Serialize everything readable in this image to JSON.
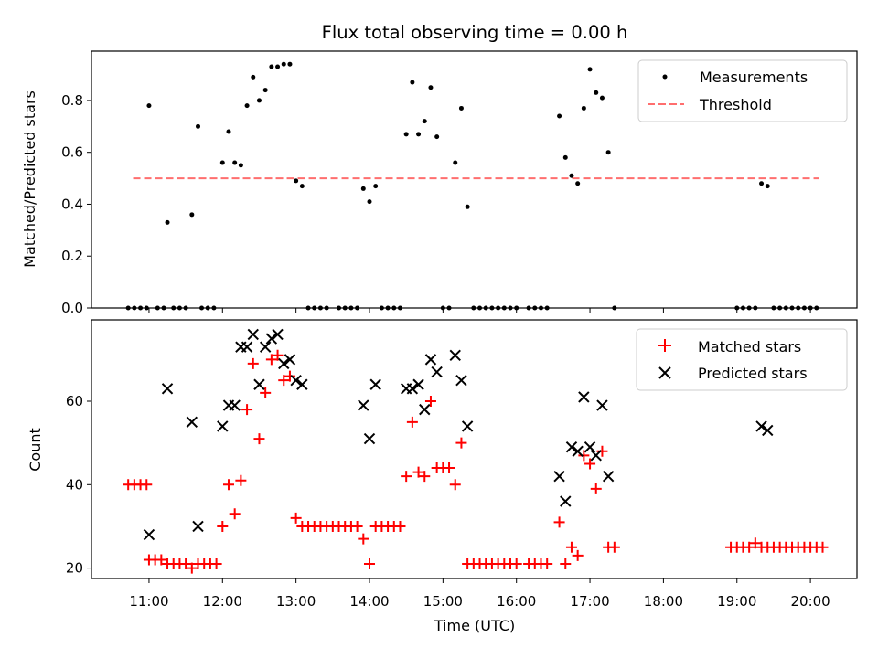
{
  "chart_data": [
    {
      "type": "scatter",
      "title": "Flux total observing time = 0.00 h",
      "ylabel": "Matched/Predicted stars",
      "ylim": [
        0,
        0.99
      ],
      "yticks": [
        0.0,
        0.2,
        0.4,
        0.6,
        0.8
      ],
      "ytick_labels": [
        "0.0",
        "0.2",
        "0.4",
        "0.6",
        "0.8"
      ],
      "legend": {
        "placement": "upper-right",
        "entries": [
          "Measurements",
          "Threshold"
        ]
      },
      "threshold": {
        "name": "Threshold",
        "y": 0.5,
        "x_start": "10:47",
        "x_end": "20:07",
        "color": "#ff6e6e"
      },
      "series": [
        {
          "name": "Measurements",
          "color": "#000000",
          "points": [
            [
              "10:43",
              0
            ],
            [
              "10:48",
              0
            ],
            [
              "10:53",
              0
            ],
            [
              "10:58",
              0
            ],
            [
              "11:00",
              0.78
            ],
            [
              "11:07",
              0
            ],
            [
              "11:12",
              0
            ],
            [
              "11:15",
              0.33
            ],
            [
              "11:20",
              0
            ],
            [
              "11:25",
              0
            ],
            [
              "11:30",
              0
            ],
            [
              "11:35",
              0.36
            ],
            [
              "11:40",
              0.7
            ],
            [
              "11:43",
              0
            ],
            [
              "11:48",
              0
            ],
            [
              "11:53",
              0
            ],
            [
              "12:00",
              0.56
            ],
            [
              "12:05",
              0.68
            ],
            [
              "12:10",
              0.56
            ],
            [
              "12:15",
              0.55
            ],
            [
              "12:20",
              0.78
            ],
            [
              "12:25",
              0.89
            ],
            [
              "12:30",
              0.8
            ],
            [
              "12:35",
              0.84
            ],
            [
              "12:40",
              0.93
            ],
            [
              "12:45",
              0.93
            ],
            [
              "12:50",
              0.94
            ],
            [
              "12:55",
              0.94
            ],
            [
              "13:00",
              0.49
            ],
            [
              "13:05",
              0.47
            ],
            [
              "13:10",
              0
            ],
            [
              "13:15",
              0
            ],
            [
              "13:20",
              0
            ],
            [
              "13:25",
              0
            ],
            [
              "13:35",
              0
            ],
            [
              "13:40",
              0
            ],
            [
              "13:45",
              0
            ],
            [
              "13:50",
              0
            ],
            [
              "13:55",
              0.46
            ],
            [
              "14:00",
              0.41
            ],
            [
              "14:05",
              0.47
            ],
            [
              "14:10",
              0
            ],
            [
              "14:15",
              0
            ],
            [
              "14:20",
              0
            ],
            [
              "14:25",
              0
            ],
            [
              "14:30",
              0.67
            ],
            [
              "14:35",
              0.87
            ],
            [
              "14:40",
              0.67
            ],
            [
              "14:45",
              0.72
            ],
            [
              "14:50",
              0.85
            ],
            [
              "14:55",
              0.66
            ],
            [
              "15:00",
              0
            ],
            [
              "15:05",
              0
            ],
            [
              "15:10",
              0.56
            ],
            [
              "15:15",
              0.77
            ],
            [
              "15:20",
              0.39
            ],
            [
              "15:25",
              0
            ],
            [
              "15:30",
              0
            ],
            [
              "15:35",
              0
            ],
            [
              "15:40",
              0
            ],
            [
              "15:45",
              0
            ],
            [
              "15:50",
              0
            ],
            [
              "15:55",
              0
            ],
            [
              "16:00",
              0
            ],
            [
              "16:10",
              0
            ],
            [
              "16:15",
              0
            ],
            [
              "16:20",
              0
            ],
            [
              "16:25",
              0
            ],
            [
              "16:35",
              0.74
            ],
            [
              "16:40",
              0.58
            ],
            [
              "16:45",
              0.51
            ],
            [
              "16:50",
              0.48
            ],
            [
              "16:55",
              0.77
            ],
            [
              "17:00",
              0.92
            ],
            [
              "17:05",
              0.83
            ],
            [
              "17:10",
              0.81
            ],
            [
              "17:15",
              0.6
            ],
            [
              "17:20",
              0
            ],
            [
              "19:00",
              0
            ],
            [
              "19:05",
              0
            ],
            [
              "19:10",
              0
            ],
            [
              "19:15",
              0
            ],
            [
              "19:20",
              0.48
            ],
            [
              "19:25",
              0.47
            ],
            [
              "19:30",
              0
            ],
            [
              "19:35",
              0
            ],
            [
              "19:40",
              0
            ],
            [
              "19:45",
              0
            ],
            [
              "19:50",
              0
            ],
            [
              "19:55",
              0
            ],
            [
              "20:00",
              0
            ],
            [
              "20:05",
              0
            ]
          ]
        }
      ]
    },
    {
      "type": "scatter",
      "xlabel": "Time (UTC)",
      "ylabel": "Count",
      "ylim": [
        17.5,
        79.5
      ],
      "yticks": [
        20,
        40,
        60
      ],
      "ytick_labels": [
        "20",
        "40",
        "60"
      ],
      "xlim": [
        "10:13",
        "20:38"
      ],
      "xticks": [
        "11:00",
        "12:00",
        "13:00",
        "14:00",
        "15:00",
        "16:00",
        "17:00",
        "18:00",
        "19:00",
        "20:00"
      ],
      "xtick_labels": [
        "11:00",
        "12:00",
        "13:00",
        "14:00",
        "15:00",
        "16:00",
        "17:00",
        "18:00",
        "19:00",
        "20:00"
      ],
      "legend": {
        "placement": "upper-right",
        "entries": [
          "Matched stars",
          "Predicted stars"
        ]
      },
      "series": [
        {
          "name": "Matched stars",
          "marker": "plus",
          "color": "#ff0000",
          "points": [
            [
              "10:43",
              40
            ],
            [
              "10:48",
              40
            ],
            [
              "10:53",
              40
            ],
            [
              "10:58",
              40
            ],
            [
              "11:00",
              22
            ],
            [
              "11:05",
              22
            ],
            [
              "11:10",
              22
            ],
            [
              "11:15",
              21
            ],
            [
              "11:20",
              21
            ],
            [
              "11:25",
              21
            ],
            [
              "11:30",
              21
            ],
            [
              "11:35",
              20
            ],
            [
              "11:40",
              21
            ],
            [
              "11:45",
              21
            ],
            [
              "11:50",
              21
            ],
            [
              "11:55",
              21
            ],
            [
              "12:00",
              30
            ],
            [
              "12:05",
              40
            ],
            [
              "12:10",
              33
            ],
            [
              "12:15",
              41
            ],
            [
              "12:20",
              58
            ],
            [
              "12:25",
              69
            ],
            [
              "12:30",
              51
            ],
            [
              "12:35",
              62
            ],
            [
              "12:40",
              70
            ],
            [
              "12:45",
              71
            ],
            [
              "12:50",
              65
            ],
            [
              "12:55",
              66
            ],
            [
              "13:00",
              32
            ],
            [
              "13:05",
              30
            ],
            [
              "13:10",
              30
            ],
            [
              "13:15",
              30
            ],
            [
              "13:20",
              30
            ],
            [
              "13:25",
              30
            ],
            [
              "13:30",
              30
            ],
            [
              "13:35",
              30
            ],
            [
              "13:40",
              30
            ],
            [
              "13:45",
              30
            ],
            [
              "13:50",
              30
            ],
            [
              "13:55",
              27
            ],
            [
              "14:00",
              21
            ],
            [
              "14:05",
              30
            ],
            [
              "14:10",
              30
            ],
            [
              "14:15",
              30
            ],
            [
              "14:20",
              30
            ],
            [
              "14:25",
              30
            ],
            [
              "14:30",
              42
            ],
            [
              "14:35",
              55
            ],
            [
              "14:40",
              43
            ],
            [
              "14:45",
              42
            ],
            [
              "14:50",
              60
            ],
            [
              "14:55",
              44
            ],
            [
              "15:00",
              44
            ],
            [
              "15:05",
              44
            ],
            [
              "15:10",
              40
            ],
            [
              "15:15",
              50
            ],
            [
              "15:20",
              21
            ],
            [
              "15:25",
              21
            ],
            [
              "15:30",
              21
            ],
            [
              "15:35",
              21
            ],
            [
              "15:40",
              21
            ],
            [
              "15:45",
              21
            ],
            [
              "15:50",
              21
            ],
            [
              "15:55",
              21
            ],
            [
              "16:00",
              21
            ],
            [
              "16:10",
              21
            ],
            [
              "16:15",
              21
            ],
            [
              "16:20",
              21
            ],
            [
              "16:25",
              21
            ],
            [
              "16:35",
              31
            ],
            [
              "16:40",
              21
            ],
            [
              "16:45",
              25
            ],
            [
              "16:50",
              23
            ],
            [
              "16:55",
              47
            ],
            [
              "17:00",
              45
            ],
            [
              "17:05",
              39
            ],
            [
              "17:10",
              48
            ],
            [
              "17:15",
              25
            ],
            [
              "17:20",
              25
            ],
            [
              "18:55",
              25
            ],
            [
              "19:00",
              25
            ],
            [
              "19:05",
              25
            ],
            [
              "19:10",
              25
            ],
            [
              "19:15",
              26
            ],
            [
              "19:20",
              25
            ],
            [
              "19:25",
              25
            ],
            [
              "19:30",
              25
            ],
            [
              "19:35",
              25
            ],
            [
              "19:40",
              25
            ],
            [
              "19:45",
              25
            ],
            [
              "19:50",
              25
            ],
            [
              "19:55",
              25
            ],
            [
              "20:00",
              25
            ],
            [
              "20:05",
              25
            ],
            [
              "20:10",
              25
            ]
          ]
        },
        {
          "name": "Predicted stars",
          "marker": "x",
          "color": "#000000",
          "points": [
            [
              "11:00",
              28
            ],
            [
              "11:15",
              63
            ],
            [
              "11:35",
              55
            ],
            [
              "11:40",
              30
            ],
            [
              "12:00",
              54
            ],
            [
              "12:05",
              59
            ],
            [
              "12:10",
              59
            ],
            [
              "12:15",
              73
            ],
            [
              "12:20",
              73
            ],
            [
              "12:25",
              76
            ],
            [
              "12:30",
              64
            ],
            [
              "12:35",
              73
            ],
            [
              "12:40",
              75
            ],
            [
              "12:45",
              76
            ],
            [
              "12:50",
              69
            ],
            [
              "12:55",
              70
            ],
            [
              "13:00",
              65
            ],
            [
              "13:05",
              64
            ],
            [
              "13:55",
              59
            ],
            [
              "14:00",
              51
            ],
            [
              "14:05",
              64
            ],
            [
              "14:30",
              63
            ],
            [
              "14:35",
              63
            ],
            [
              "14:40",
              64
            ],
            [
              "14:45",
              58
            ],
            [
              "14:50",
              70
            ],
            [
              "14:55",
              67
            ],
            [
              "15:10",
              71
            ],
            [
              "15:15",
              65
            ],
            [
              "15:20",
              54
            ],
            [
              "16:35",
              42
            ],
            [
              "16:40",
              36
            ],
            [
              "16:45",
              49
            ],
            [
              "16:50",
              48
            ],
            [
              "16:55",
              61
            ],
            [
              "17:00",
              49
            ],
            [
              "17:05",
              47
            ],
            [
              "17:10",
              59
            ],
            [
              "17:15",
              42
            ],
            [
              "19:20",
              54
            ],
            [
              "19:25",
              53
            ]
          ]
        }
      ]
    }
  ]
}
